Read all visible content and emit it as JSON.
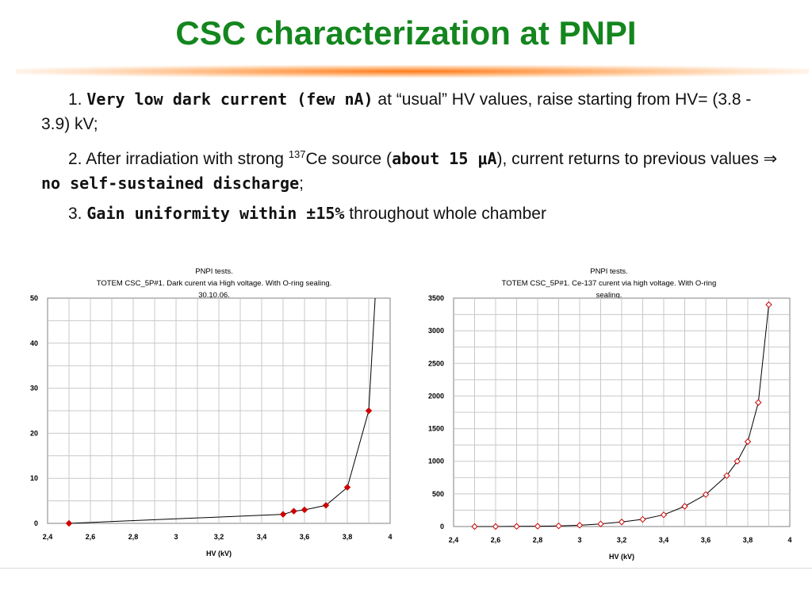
{
  "slide": {
    "title": "CSC characterization at PNPI"
  },
  "bullets": {
    "b1": {
      "num": "1. ",
      "bold": "Very low dark current (few nA)",
      "rest": " at “usual” HV values, raise starting from HV= (3.8 - 3.9) kV;"
    },
    "b2": {
      "num": "2. ",
      "pre": "After irradiation with strong ",
      "sup": "137",
      "mid": "Ce source (",
      "bold1": "about 15 μA",
      "mid2": "), current returns to previous values ⇒ ",
      "bold2": "no self-sustained discharge",
      "end": ";"
    },
    "b3": {
      "num": "3. ",
      "bold": "Gain uniformity within ±15%",
      "rest": " throughout whole chamber"
    }
  },
  "chart_data": [
    {
      "type": "scatter",
      "title_lines": [
        "PNPI tests.",
        "TOTEM CSC_5P#1. Dark curent via High voltage. With O-ring sealing.",
        "30.10.06."
      ],
      "xlabel": "HV (kV)",
      "ylabel": "",
      "xlim": [
        2.4,
        4
      ],
      "ylim": [
        0,
        50
      ],
      "x_ticks": [
        "2,4",
        "2,6",
        "2,8",
        "3",
        "3,2",
        "3,4",
        "3,6",
        "3,8",
        "4"
      ],
      "y_ticks": [
        "0",
        "10",
        "20",
        "30",
        "40",
        "50"
      ],
      "grid": true,
      "marker_color": "#cc0000",
      "marker_fill": "#cc0000",
      "series": [
        {
          "x": [
            2.5,
            3.5,
            3.55,
            3.6,
            3.7,
            3.8,
            3.9
          ],
          "y": [
            0,
            2,
            2.7,
            3,
            4,
            8,
            25
          ]
        }
      ]
    },
    {
      "type": "scatter",
      "title_lines": [
        "PNPI tests.",
        "TOTEM CSC_5P#1.    Ce-137 curent via high voltage.     With O-ring",
        "sealing."
      ],
      "xlabel": "HV (kV)",
      "ylabel": "",
      "xlim": [
        2.4,
        4
      ],
      "ylim": [
        0,
        3500
      ],
      "x_ticks": [
        "2,4",
        "2,6",
        "2,8",
        "3",
        "3,2",
        "3,4",
        "3,6",
        "3,8",
        "4"
      ],
      "y_ticks": [
        "0",
        "500",
        "1000",
        "1500",
        "2000",
        "2500",
        "3000",
        "3500"
      ],
      "grid": true,
      "marker_color": "#cc0000",
      "marker_fill": "#ffffff",
      "series": [
        {
          "x": [
            2.5,
            2.6,
            2.7,
            2.8,
            2.9,
            3.0,
            3.1,
            3.2,
            3.3,
            3.4,
            3.5,
            3.6,
            3.7,
            3.75,
            3.8,
            3.85,
            3.9
          ],
          "y": [
            0,
            0,
            2,
            5,
            10,
            20,
            40,
            70,
            110,
            180,
            310,
            490,
            780,
            1000,
            1300,
            1900,
            3400
          ]
        }
      ]
    }
  ]
}
